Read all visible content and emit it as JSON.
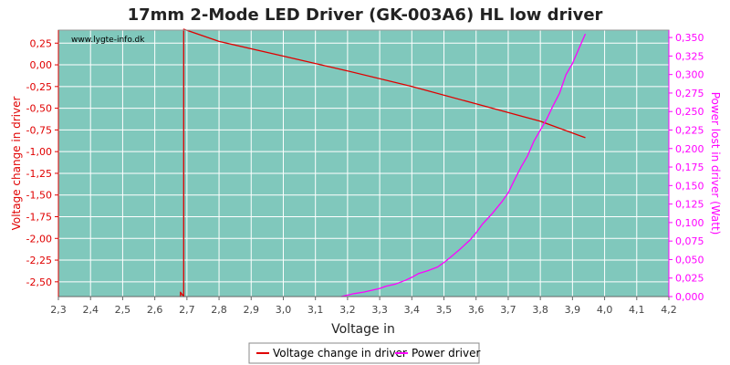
{
  "chart_data": {
    "type": "line",
    "title": "17mm 2-Mode LED Driver (GK-003A6) HL low driver",
    "watermark": "www.lygte-info.dk",
    "xlabel": "Voltage in",
    "ylabel_left": "Voltage change in driver",
    "ylabel_right": "Power lost in driver (Watt)",
    "xlim": [
      2.3,
      4.2
    ],
    "ylim_left": [
      -2.67,
      0.4
    ],
    "ylim_right": [
      0,
      0.36
    ],
    "x_ticks": [
      "2,3",
      "2,4",
      "2,5",
      "2,6",
      "2,7",
      "2,8",
      "2,9",
      "3,0",
      "3,1",
      "3,2",
      "3,3",
      "3,4",
      "3,5",
      "3,6",
      "3,7",
      "3,8",
      "3,9",
      "4,0",
      "4,1",
      "4,2"
    ],
    "y_left_ticks": [
      "0,25",
      "0,00",
      "-0,25",
      "-0,50",
      "-0,75",
      "-1,00",
      "-1,25",
      "-1,50",
      "-1,75",
      "-2,00",
      "-2,25",
      "-2,50"
    ],
    "y_right_ticks": [
      "0,350",
      "0,325",
      "0,300",
      "0,275",
      "0,250",
      "0,225",
      "0,200",
      "0,175",
      "0,150",
      "0,125",
      "0,100",
      "0,075",
      "0,050",
      "0,025",
      "0,000"
    ],
    "grid": true,
    "plot_background": "#80c8bc",
    "series": [
      {
        "name": "Voltage change in driver",
        "axis": "left",
        "color": "#e00000",
        "points": [
          [
            2.68,
            -2.67
          ],
          [
            2.68,
            -2.62
          ],
          [
            2.69,
            -2.67
          ],
          [
            2.69,
            0.41
          ],
          [
            2.8,
            0.27
          ],
          [
            3.0,
            0.1
          ],
          [
            3.2,
            -0.07
          ],
          [
            3.4,
            -0.25
          ],
          [
            3.6,
            -0.45
          ],
          [
            3.8,
            -0.65
          ],
          [
            3.94,
            -0.84
          ]
        ]
      },
      {
        "name": "Power driver",
        "axis": "right",
        "color": "#ff00ff",
        "points": [
          [
            3.18,
            0.0
          ],
          [
            3.2,
            0.002
          ],
          [
            3.22,
            0.004
          ],
          [
            3.25,
            0.006
          ],
          [
            3.28,
            0.009
          ],
          [
            3.3,
            0.011
          ],
          [
            3.32,
            0.014
          ],
          [
            3.35,
            0.017
          ],
          [
            3.38,
            0.022
          ],
          [
            3.4,
            0.026
          ],
          [
            3.42,
            0.031
          ],
          [
            3.45,
            0.035
          ],
          [
            3.48,
            0.04
          ],
          [
            3.5,
            0.046
          ],
          [
            3.52,
            0.053
          ],
          [
            3.55,
            0.064
          ],
          [
            3.58,
            0.076
          ],
          [
            3.6,
            0.086
          ],
          [
            3.62,
            0.098
          ],
          [
            3.65,
            0.112
          ],
          [
            3.68,
            0.128
          ],
          [
            3.7,
            0.14
          ],
          [
            3.72,
            0.158
          ],
          [
            3.74,
            0.175
          ],
          [
            3.76,
            0.19
          ],
          [
            3.78,
            0.21
          ],
          [
            3.8,
            0.225
          ],
          [
            3.82,
            0.24
          ],
          [
            3.84,
            0.258
          ],
          [
            3.86,
            0.275
          ],
          [
            3.88,
            0.3
          ],
          [
            3.9,
            0.315
          ],
          [
            3.92,
            0.335
          ],
          [
            3.94,
            0.355
          ]
        ]
      }
    ],
    "legend": {
      "position": "bottom-center",
      "entries": [
        "Voltage change in driver",
        "Power driver"
      ]
    }
  }
}
